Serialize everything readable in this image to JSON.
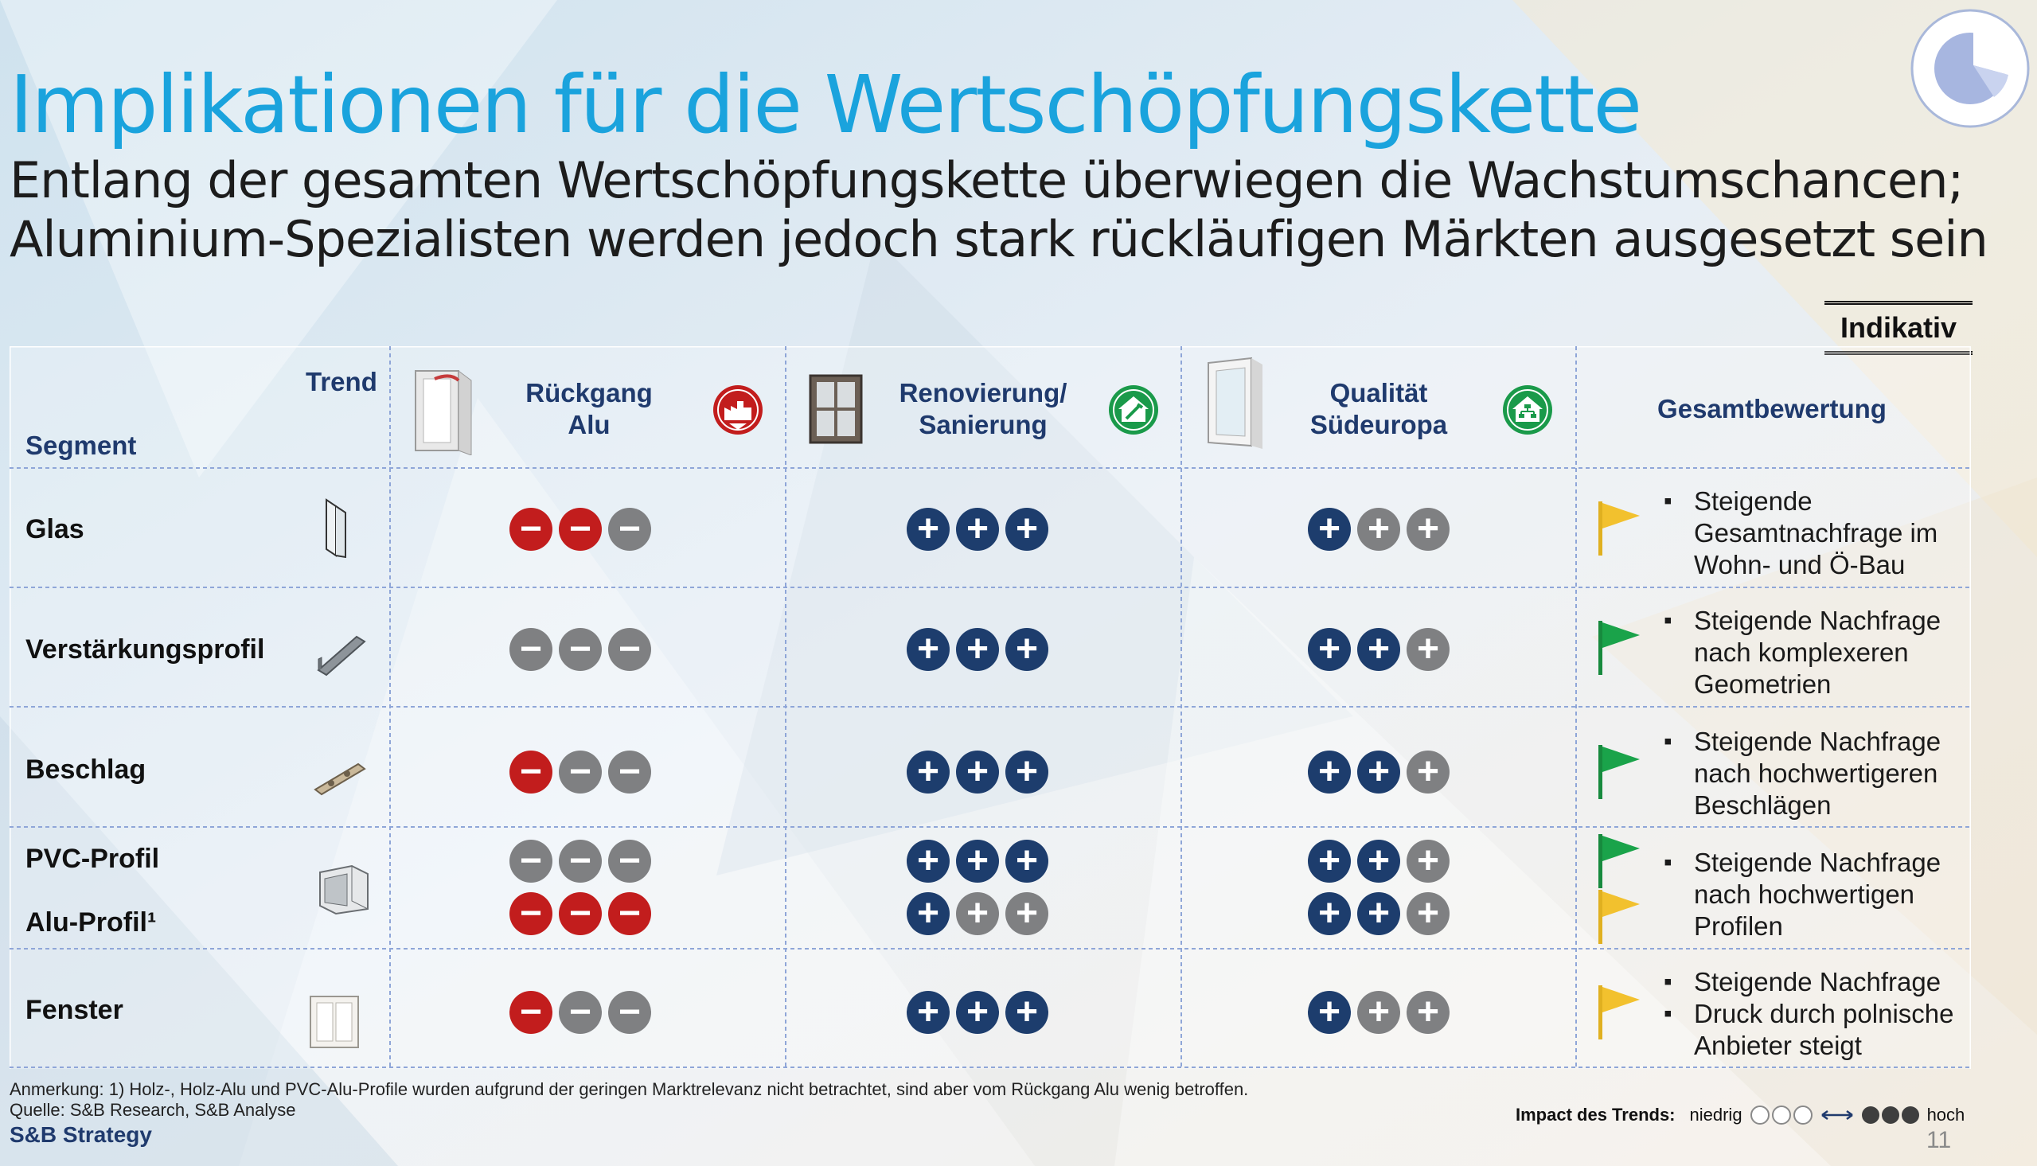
{
  "header": {
    "title": "Implikationen für die Wertschöpfungskette",
    "subtitle_line1": "Entlang der gesamten Wertschöpfungskette überwiegen die Wachstumschancen;",
    "subtitle_line2": "Aluminium-Spezialisten werden jedoch stark rückläufigen Märkten ausgesetzt sein",
    "badge": "Indikativ"
  },
  "table": {
    "corner_trend": "Trend",
    "corner_segment": "Segment",
    "columns": [
      {
        "line1": "Rückgang",
        "line2": "Alu",
        "icon": "factory-down-icon",
        "icon_color": "#c21d1d"
      },
      {
        "line1": "Renovierung/",
        "line2": "Sanierung",
        "icon": "house-tools-icon",
        "icon_color": "#1a9a4a"
      },
      {
        "line1": "Qualität",
        "line2": "Südeuropa",
        "icon": "house-network-icon",
        "icon_color": "#1a9a4a"
      }
    ],
    "assessment_header": "Gesamtbewertung",
    "rows": [
      {
        "segment": "Glas",
        "icon": "glass-pane-icon",
        "ratings": [
          [
            "red",
            "red",
            "grey"
          ],
          [
            "navy",
            "navy",
            "navy"
          ],
          [
            "navy",
            "grey",
            "grey"
          ]
        ],
        "flag": "yellow",
        "bullets": [
          "Steigende Gesamtnachfrage im Wohn- und Ö-Bau"
        ]
      },
      {
        "segment": "Verstärkungsprofil",
        "icon": "steel-profile-icon",
        "ratings": [
          [
            "grey",
            "grey",
            "grey"
          ],
          [
            "navy",
            "navy",
            "navy"
          ],
          [
            "navy",
            "navy",
            "grey"
          ]
        ],
        "flag": "green",
        "bullets": [
          "Steigende Nachfrage nach komplexeren Geometrien"
        ]
      },
      {
        "segment": "Beschlag",
        "icon": "hardware-fitting-icon",
        "ratings": [
          [
            "red",
            "grey",
            "grey"
          ],
          [
            "navy",
            "navy",
            "navy"
          ],
          [
            "navy",
            "navy",
            "grey"
          ]
        ],
        "flag": "green",
        "bullets": [
          "Steigende Nachfrage nach hochwertigeren Beschlägen"
        ]
      },
      {
        "segment": "PVC-Profil",
        "icon": "window-profile-icon",
        "ratings": [
          [
            "grey",
            "grey",
            "grey"
          ],
          [
            "navy",
            "navy",
            "navy"
          ],
          [
            "navy",
            "navy",
            "grey"
          ]
        ],
        "flag": "green",
        "bullets": [
          "Steigende Nachfrage nach hochwertigen Profilen"
        ]
      },
      {
        "segment": "Alu-Profil¹",
        "ratings": [
          [
            "red",
            "red",
            "red"
          ],
          [
            "navy",
            "grey",
            "grey"
          ],
          [
            "navy",
            "navy",
            "grey"
          ]
        ],
        "flag": "yellow"
      },
      {
        "segment": "Fenster",
        "icon": "window-icon",
        "ratings": [
          [
            "red",
            "grey",
            "grey"
          ],
          [
            "navy",
            "navy",
            "navy"
          ],
          [
            "navy",
            "grey",
            "grey"
          ]
        ],
        "flag": "yellow",
        "bullets": [
          "Steigende Nachfrage",
          "Druck durch polnische Anbieter steigt"
        ]
      }
    ]
  },
  "footer": {
    "note": "Anmerkung: 1) Holz-, Holz-Alu und PVC-Alu-Profile wurden aufgrund der geringen Marktrelevanz nicht betrachtet, sind aber vom Rückgang Alu wenig betroffen.",
    "source": "Quelle: S&B Research, S&B Analyse",
    "brand": "S&B Strategy",
    "legend_label": "Impact des Trends:",
    "legend_low": "niedrig",
    "legend_high": "hoch",
    "page_number": "11"
  },
  "colors": {
    "title": "#1aa3dd",
    "header_text": "#1f3a6d",
    "minus_red": "#c21d1d",
    "neutral_grey": "#7f8082",
    "plus_navy": "#1d3d6d",
    "flag_green": "#1aa34a",
    "flag_yellow": "#f2c12e"
  }
}
